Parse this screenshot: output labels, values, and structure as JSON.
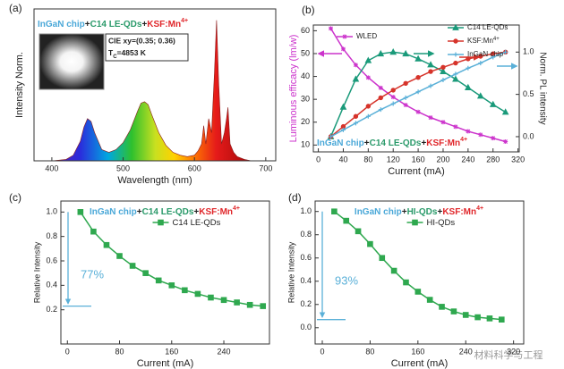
{
  "chart_data": [
    {
      "type": "area",
      "panel_label": "(a)",
      "title_parts": [
        {
          "text": "InGaN chip",
          "color": "#4aa8d8"
        },
        {
          "text": "+",
          "color": "#222222"
        },
        {
          "text": "C14 LE-QDs",
          "color": "#2a9a6a"
        },
        {
          "text": "+",
          "color": "#222222"
        },
        {
          "text": "KSF:Mn",
          "color": "#e0262a",
          "sup": "4+"
        }
      ],
      "inset_lines": [
        "CIE xy=(0.35; 0.36)"
      ],
      "cct": {
        "symbol": "T",
        "subscript": "C",
        "text": "=4853 K"
      },
      "x_label": "Wavelength (nm)",
      "y_label": "Intensity Norm.",
      "x": [
        380,
        400,
        420,
        430,
        440,
        445,
        450,
        455,
        460,
        470,
        480,
        490,
        500,
        510,
        520,
        525,
        530,
        535,
        540,
        550,
        560,
        570,
        580,
        590,
        600,
        605,
        610,
        613,
        616,
        620,
        624,
        628,
        631,
        634,
        638,
        642,
        645,
        647,
        650,
        655,
        660,
        670,
        680,
        700,
        710
      ],
      "values": [
        0,
        0,
        0.01,
        0.04,
        0.14,
        0.24,
        0.3,
        0.28,
        0.2,
        0.08,
        0.06,
        0.08,
        0.13,
        0.22,
        0.35,
        0.41,
        0.42,
        0.4,
        0.33,
        0.2,
        0.11,
        0.06,
        0.04,
        0.03,
        0.04,
        0.07,
        0.12,
        0.25,
        0.12,
        0.3,
        0.2,
        0.62,
        1.0,
        0.55,
        0.12,
        0.2,
        0.3,
        0.38,
        0.12,
        0.06,
        0.03,
        0.01,
        0,
        0,
        0
      ],
      "xlim": [
        375,
        714
      ],
      "ylim": [
        0,
        1.08
      ],
      "xticks": [
        400,
        500,
        600,
        700
      ]
    },
    {
      "type": "line",
      "panel_label": "(b)",
      "title_parts": [
        {
          "text": "InGaN chip",
          "color": "#4aa8d8"
        },
        {
          "text": "+",
          "color": "#222222"
        },
        {
          "text": "C14 LE-QDs",
          "color": "#2a9a6a"
        },
        {
          "text": "+",
          "color": "#222222"
        },
        {
          "text": "KSF:Mn",
          "color": "#e0262a",
          "sup": "4+"
        }
      ],
      "x_label": "Current (mA)",
      "y_label": "Luminous efficacy (lm/w)",
      "y_label_color": "#cc33cc",
      "y2_label": "Norm. PL intensity",
      "x": [
        20,
        40,
        60,
        80,
        100,
        120,
        140,
        160,
        180,
        200,
        220,
        240,
        260,
        280,
        300
      ],
      "series": [
        {
          "name": "WLED",
          "color": "#cc33cc",
          "marker": "star",
          "values": [
            61,
            52,
            45,
            39.5,
            35,
            31,
            27.5,
            24.5,
            22,
            20,
            18,
            16,
            14.5,
            13,
            11.5
          ]
        },
        {
          "name": "C14 LE-QDs",
          "color": "#1a9a7a",
          "marker": "triangle",
          "axis": "y2",
          "values": [
            0,
            0.35,
            0.68,
            0.9,
            0.98,
            1.0,
            0.98,
            0.92,
            0.85,
            0.77,
            0.68,
            0.58,
            0.48,
            0.38,
            0.29
          ]
        },
        {
          "name": "KSF:Mn",
          "name_sup": "4+",
          "color": "#d6332a",
          "marker": "circle",
          "axis": "y2",
          "values": [
            0,
            0.12,
            0.24,
            0.36,
            0.46,
            0.55,
            0.63,
            0.7,
            0.77,
            0.82,
            0.87,
            0.92,
            0.95,
            0.98,
            1.0
          ]
        },
        {
          "name": "InGaN chip",
          "color": "#5ab0d8",
          "marker": "cross",
          "axis": "y2",
          "values": [
            0,
            0.08,
            0.16,
            0.24,
            0.32,
            0.39,
            0.46,
            0.53,
            0.6,
            0.67,
            0.74,
            0.81,
            0.87,
            0.94,
            1.0
          ]
        }
      ],
      "xlim": [
        -8,
        322
      ],
      "ylim": [
        7,
        62.5
      ],
      "y2lim": [
        -0.18,
        1.32
      ],
      "xticks": [
        0,
        40,
        80,
        120,
        160,
        200,
        240,
        280,
        320
      ],
      "yticks": [
        10,
        20,
        30,
        40,
        50,
        60
      ],
      "y2ticks": [
        {
          "value": 0,
          "label": "0.0"
        },
        0.5,
        {
          "value": 1,
          "label": "1.0"
        }
      ]
    },
    {
      "type": "line",
      "panel_label": "(c)",
      "title_parts": [
        {
          "text": "InGaN chip",
          "color": "#4aa8d8"
        },
        {
          "text": "+",
          "color": "#222222"
        },
        {
          "text": "C14 LE-QDs",
          "color": "#2a9a6a"
        },
        {
          "text": "+",
          "color": "#222222"
        },
        {
          "text": "KSF:Mn",
          "color": "#e0262a",
          "sup": "4+"
        }
      ],
      "x_label": "Current (mA)",
      "y_label": "Relative Intensity",
      "drop_label": "77%",
      "x": [
        20,
        40,
        60,
        80,
        100,
        120,
        140,
        160,
        180,
        200,
        220,
        240,
        260,
        280,
        300
      ],
      "series": [
        {
          "name": "C14 LE-QDs",
          "color": "#2fa84f",
          "marker": "square",
          "values": [
            1.0,
            0.84,
            0.73,
            0.64,
            0.56,
            0.5,
            0.44,
            0.4,
            0.36,
            0.33,
            0.3,
            0.28,
            0.26,
            0.24,
            0.23
          ]
        }
      ],
      "xlim": [
        -10,
        310
      ],
      "ylim": [
        -0.08,
        1.09
      ],
      "xticks": [
        0,
        80,
        160,
        240
      ],
      "yticks": [
        0.2,
        0.4,
        0.6,
        0.8,
        {
          "value": 1,
          "label": "1.0"
        }
      ]
    },
    {
      "type": "line",
      "panel_label": "(d)",
      "title_parts": [
        {
          "text": "InGaN chip",
          "color": "#4aa8d8"
        },
        {
          "text": "+",
          "color": "#222222"
        },
        {
          "text": "HI-QDs",
          "color": "#2a9a6a"
        },
        {
          "text": "+",
          "color": "#222222"
        },
        {
          "text": "KSF:Mn",
          "color": "#e0262a",
          "sup": "4+"
        }
      ],
      "x_label": "Current (mA)",
      "y_label": "Relative Intensity",
      "drop_label": "93%",
      "x": [
        20,
        40,
        60,
        80,
        100,
        120,
        140,
        160,
        180,
        200,
        220,
        240,
        260,
        280,
        300
      ],
      "series": [
        {
          "name": "HI-QDs",
          "color": "#2fa84f",
          "marker": "square",
          "values": [
            1.0,
            0.92,
            0.83,
            0.72,
            0.6,
            0.49,
            0.39,
            0.31,
            0.24,
            0.18,
            0.14,
            0.11,
            0.09,
            0.08,
            0.07
          ]
        }
      ],
      "xlim": [
        -12,
        337
      ],
      "ylim": [
        -0.14,
        1.09
      ],
      "xticks": [
        0,
        80,
        160,
        240,
        320
      ],
      "yticks": [
        {
          "value": 0,
          "label": "0.0"
        },
        0.2,
        0.4,
        0.6,
        0.8,
        {
          "value": 1,
          "label": "1.0"
        }
      ]
    }
  ],
  "watermark": "材料科学与工程"
}
